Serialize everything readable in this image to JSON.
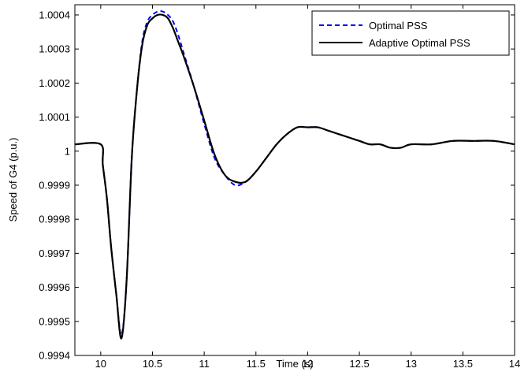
{
  "chart_data": {
    "type": "line",
    "title": "",
    "xlabel": "Time (s)",
    "ylabel": "Speed of G4 (p.u.)",
    "xlim": [
      9.75,
      14
    ],
    "ylim": [
      0.9994,
      1.00043
    ],
    "grid": false,
    "legend_position": "top-right",
    "x_ticks": [
      10,
      10.5,
      11,
      11.5,
      12,
      12.5,
      13,
      13.5,
      14
    ],
    "x_tick_labels": [
      "10",
      "10.5",
      "11",
      "11.5",
      "12",
      "12.5",
      "13",
      "13.5",
      "14"
    ],
    "y_ticks": [
      0.9994,
      0.9995,
      0.9996,
      0.9997,
      0.9998,
      0.9999,
      1.0,
      1.0001,
      1.0002,
      1.0003,
      1.0004
    ],
    "y_tick_labels": [
      "0.9994",
      "0.9995",
      "0.9996",
      "0.9997",
      "0.9998",
      "0.9999",
      "1",
      "1.0001",
      "1.0002",
      "1.0003",
      "1.0004"
    ],
    "series": [
      {
        "name": "Optimal PSS",
        "color": "#0000ff",
        "style": "dashed",
        "x": [
          9.75,
          10.0,
          10.02,
          10.06,
          10.1,
          10.15,
          10.2,
          10.25,
          10.3,
          10.35,
          10.4,
          10.45,
          10.5,
          10.55,
          10.6,
          10.65,
          10.7,
          10.75,
          10.8,
          10.9,
          11.0,
          11.1,
          11.2,
          11.3,
          11.4,
          11.5,
          11.6,
          11.7,
          11.8,
          11.9,
          12.0,
          12.1,
          12.2,
          12.3,
          12.4,
          12.5,
          12.6,
          12.7,
          12.8,
          12.9,
          13.0,
          13.2,
          13.4,
          13.6,
          13.8,
          14.0
        ],
        "y": [
          1.00002,
          1.00002,
          0.99996,
          0.99986,
          0.99972,
          0.99958,
          0.99946,
          0.99962,
          0.99998,
          1.00018,
          1.00032,
          1.00038,
          1.0004,
          1.00041,
          1.00041,
          1.0004,
          1.00038,
          1.00034,
          1.00029,
          1.00019,
          1.00008,
          0.99998,
          0.99993,
          0.9999,
          0.99991,
          0.99994,
          0.99998,
          1.00002,
          1.00005,
          1.00007,
          1.00007,
          1.00007,
          1.00006,
          1.00005,
          1.00004,
          1.00003,
          1.00002,
          1.00002,
          1.00001,
          1.00001,
          1.00002,
          1.00002,
          1.00003,
          1.00003,
          1.00003,
          1.00002
        ]
      },
      {
        "name": "Adaptive Optimal PSS",
        "color": "#000000",
        "style": "solid",
        "x": [
          9.75,
          10.0,
          10.02,
          10.06,
          10.1,
          10.15,
          10.2,
          10.25,
          10.3,
          10.35,
          10.4,
          10.45,
          10.5,
          10.55,
          10.6,
          10.65,
          10.7,
          10.75,
          10.8,
          10.9,
          11.0,
          11.1,
          11.2,
          11.3,
          11.4,
          11.5,
          11.6,
          11.7,
          11.8,
          11.9,
          12.0,
          12.1,
          12.2,
          12.3,
          12.4,
          12.5,
          12.6,
          12.7,
          12.8,
          12.9,
          13.0,
          13.2,
          13.4,
          13.6,
          13.8,
          14.0
        ],
        "y": [
          1.00002,
          1.00002,
          0.99996,
          0.99986,
          0.99972,
          0.99958,
          0.99945,
          0.99962,
          0.99998,
          1.00018,
          1.00031,
          1.00037,
          1.00039,
          1.0004,
          1.0004,
          1.00039,
          1.00036,
          1.00032,
          1.00028,
          1.00019,
          1.00009,
          0.99999,
          0.99993,
          0.99991,
          0.99991,
          0.99994,
          0.99998,
          1.00002,
          1.00005,
          1.00007,
          1.00007,
          1.00007,
          1.00006,
          1.00005,
          1.00004,
          1.00003,
          1.00002,
          1.00002,
          1.00001,
          1.00001,
          1.00002,
          1.00002,
          1.00003,
          1.00003,
          1.00003,
          1.00002
        ]
      }
    ]
  }
}
